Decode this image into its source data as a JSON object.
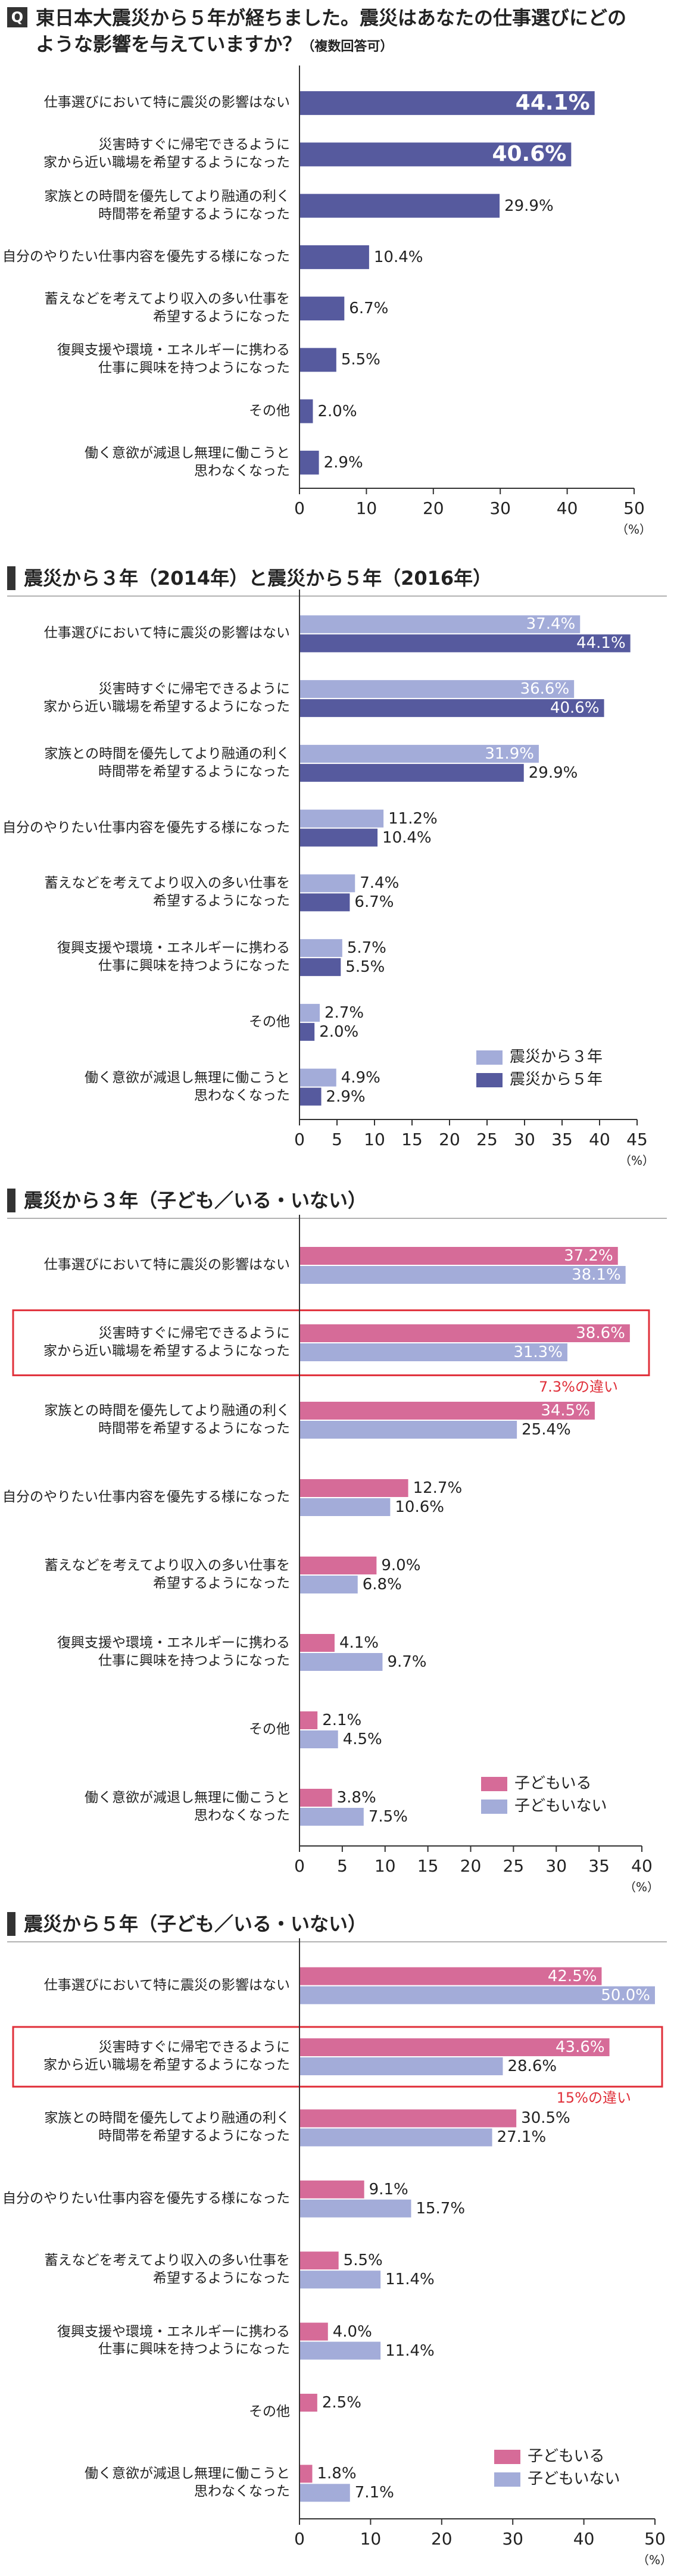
{
  "chart_data": [
    {
      "type": "bar",
      "orientation": "horizontal",
      "marker": "Q",
      "title": "東日本大震災から５年が経ちました。震災はあなたの仕事選びにどのような影響を与えていますか？",
      "note": "（複数回答可）",
      "categories": [
        "仕事選びにおいて特に震災の影響はない",
        "災害時すぐに帰宅できるように\n家から近い職場を希望するようになった",
        "家族との時間を優先してより融通の利く\n時間帯を希望するようになった",
        "自分のやりたい仕事内容を優先する様になった",
        "蓄えなどを考えてより収入の多い仕事を\n希望するようになった",
        "復興支援や環境・エネルギーに携わる\n仕事に興味を持つようになった",
        "その他",
        "働く意欲が減退し無理に働こうと\n思わなくなった"
      ],
      "values": [
        44.1,
        40.6,
        29.9,
        10.4,
        6.7,
        5.5,
        2.0,
        2.9
      ],
      "value_labels": [
        "44.1%",
        "40.6%",
        "29.9%",
        "10.4%",
        "6.7%",
        "5.5%",
        "2.0%",
        "2.9%"
      ],
      "color": "#565a9e",
      "xlim": [
        0,
        50
      ],
      "xticks": [
        0,
        10,
        20,
        30,
        40,
        50
      ],
      "x_unit": "（%）"
    },
    {
      "type": "bar",
      "orientation": "horizontal",
      "title": "震災から３年（2014年）と震災から５年（2016年）",
      "categories": [
        "仕事選びにおいて特に震災の影響はない",
        "災害時すぐに帰宅できるように\n家から近い職場を希望するようになった",
        "家族との時間を優先してより融通の利く\n時間帯を希望するようになった",
        "自分のやりたい仕事内容を優先する様になった",
        "蓄えなどを考えてより収入の多い仕事を\n希望するようになった",
        "復興支援や環境・エネルギーに携わる\n仕事に興味を持つようになった",
        "その他",
        "働く意欲が減退し無理に働こうと\n思わなくなった"
      ],
      "series": [
        {
          "name": "震災から３年",
          "color": "#a3acd9",
          "values": [
            37.4,
            36.6,
            31.9,
            11.2,
            7.4,
            5.7,
            2.7,
            4.9
          ],
          "value_labels": [
            "37.4%",
            "36.6%",
            "31.9%",
            "11.2%",
            "7.4%",
            "5.7%",
            "2.7%",
            "4.9%"
          ]
        },
        {
          "name": "震災から５年",
          "color": "#565a9e",
          "values": [
            44.1,
            40.6,
            29.9,
            10.4,
            6.7,
            5.5,
            2.0,
            2.9
          ],
          "value_labels": [
            "44.1%",
            "40.6%",
            "29.9%",
            "10.4%",
            "6.7%",
            "5.5%",
            "2.0%",
            "2.9%"
          ]
        }
      ],
      "xlim": [
        0,
        45
      ],
      "xticks": [
        0,
        5,
        10,
        15,
        20,
        25,
        30,
        35,
        40,
        45
      ],
      "x_unit": "（%）",
      "legend": "lower right"
    },
    {
      "type": "bar",
      "orientation": "horizontal",
      "title": "震災から３年（子ども／いる・いない）",
      "categories": [
        "仕事選びにおいて特に震災の影響はない",
        "災害時すぐに帰宅できるように\n家から近い職場を希望するようになった",
        "家族との時間を優先してより融通の利く\n時間帯を希望するようになった",
        "自分のやりたい仕事内容を優先する様になった",
        "蓄えなどを考えてより収入の多い仕事を\n希望するようになった",
        "復興支援や環境・エネルギーに携わる\n仕事に興味を持つようになった",
        "その他",
        "働く意欲が減退し無理に働こうと\n思わなくなった"
      ],
      "series": [
        {
          "name": "子どもいる",
          "color": "#d66b98",
          "values": [
            37.2,
            38.6,
            34.5,
            12.7,
            9.0,
            4.1,
            2.1,
            3.8
          ],
          "value_labels": [
            "37.2%",
            "38.6%",
            "34.5%",
            "12.7%",
            "9.0%",
            "4.1%",
            "2.1%",
            "3.8%"
          ]
        },
        {
          "name": "子どもいない",
          "color": "#a3acd9",
          "values": [
            38.1,
            31.3,
            25.4,
            10.6,
            6.8,
            9.7,
            4.5,
            7.5
          ],
          "value_labels": [
            "38.1%",
            "31.3%",
            "25.4%",
            "10.6%",
            "6.8%",
            "9.7%",
            "4.5%",
            "7.5%"
          ]
        }
      ],
      "annotation": "7.3%の違い",
      "xlim": [
        0,
        40
      ],
      "xticks": [
        0,
        5,
        10,
        15,
        20,
        25,
        30,
        35,
        40
      ],
      "x_unit": "（%）",
      "legend": "lower right"
    },
    {
      "type": "bar",
      "orientation": "horizontal",
      "title": "震災から５年（子ども／いる・いない）",
      "categories": [
        "仕事選びにおいて特に震災の影響はない",
        "災害時すぐに帰宅できるように\n家から近い職場を希望するようになった",
        "家族との時間を優先してより融通の利く\n時間帯を希望するようになった",
        "自分のやりたい仕事内容を優先する様になった",
        "蓄えなどを考えてより収入の多い仕事を\n希望するようになった",
        "復興支援や環境・エネルギーに携わる\n仕事に興味を持つようになった",
        "その他",
        "働く意欲が減退し無理に働こうと\n思わなくなった"
      ],
      "series": [
        {
          "name": "子どもいる",
          "color": "#d66b98",
          "values": [
            42.5,
            43.6,
            30.5,
            9.1,
            5.5,
            4.0,
            2.5,
            1.8
          ],
          "value_labels": [
            "42.5%",
            "43.6%",
            "30.5%",
            "9.1%",
            "5.5%",
            "4.0%",
            "2.5%",
            "1.8%"
          ]
        },
        {
          "name": "子どもいない",
          "color": "#a3acd9",
          "values": [
            50.0,
            28.6,
            27.1,
            15.7,
            11.4,
            11.4,
            null,
            7.1
          ],
          "value_labels": [
            "50.0%",
            "28.6%",
            "27.1%",
            "15.7%",
            "11.4%",
            "11.4%",
            null,
            "7.1%"
          ]
        }
      ],
      "annotation": "15%の違い",
      "xlim": [
        0,
        50
      ],
      "xticks": [
        0,
        10,
        20,
        30,
        40,
        50
      ],
      "x_unit": "（%）",
      "legend": "lower right"
    }
  ]
}
